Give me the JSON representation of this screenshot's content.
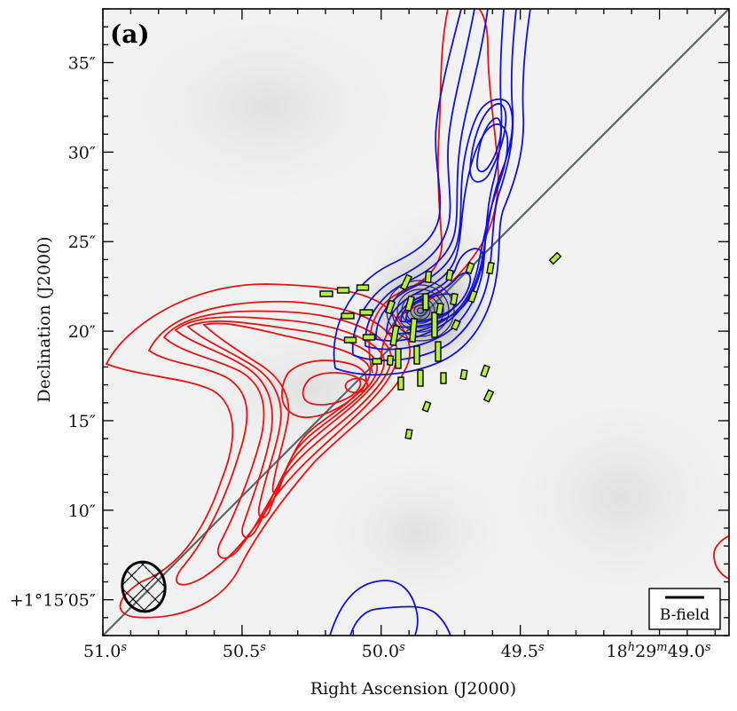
{
  "chart_data": {
    "type": "contour",
    "panel_label": "(a)",
    "xlabel": "Right Ascension (J2000)",
    "ylabel": "Declination (J2000)",
    "x_range_sec": [
      51.0,
      48.75
    ],
    "y_range_arcsec": [
      3.0,
      38.0
    ],
    "x_ticks": [
      {
        "value": 51.0,
        "main": "51.0",
        "sup": "s",
        "tail": ""
      },
      {
        "value": 50.5,
        "main": "50.5",
        "sup": "s",
        "tail": ""
      },
      {
        "value": 50.0,
        "main": "50.0",
        "sup": "s",
        "tail": ""
      },
      {
        "value": 49.5,
        "main": "49.5",
        "sup": "s",
        "tail": ""
      },
      {
        "value": 49.0,
        "main": "18",
        "sup": "h",
        "main2": "29",
        "sup2": "m",
        "tail": "49.0",
        "sup3": "s"
      }
    ],
    "y_ticks": [
      {
        "value": 35,
        "label": "35″"
      },
      {
        "value": 30,
        "label": "30″"
      },
      {
        "value": 25,
        "label": "25″"
      },
      {
        "value": 20,
        "label": "20″"
      },
      {
        "value": 15,
        "label": "15″"
      },
      {
        "value": 10,
        "label": "10″"
      },
      {
        "value": 5,
        "label": "+1°15′05″"
      }
    ],
    "legend": {
      "label": "B-field",
      "position": "bottom-right"
    },
    "beam": {
      "ra": 50.82,
      "dec": 5.2,
      "major_arcsec": 3.4,
      "minor_arcsec": 2.8
    },
    "outflow_axis": {
      "from": [
        51.0,
        3.0
      ],
      "to": [
        48.75,
        38.0
      ]
    },
    "colors": {
      "red_lobe": "#ee1111",
      "blue_lobe": "#1111dd",
      "axis": "#5a6668",
      "vector_fill": "#b5ee3c",
      "vector_stroke": "#000000"
    },
    "series": [
      {
        "name": "redshifted outflow",
        "levels": 11
      },
      {
        "name": "blueshifted outflow",
        "levels": 12
      },
      {
        "name": "dust continuum",
        "levels": 8
      },
      {
        "name": "B-field vectors",
        "count": 42
      }
    ]
  }
}
